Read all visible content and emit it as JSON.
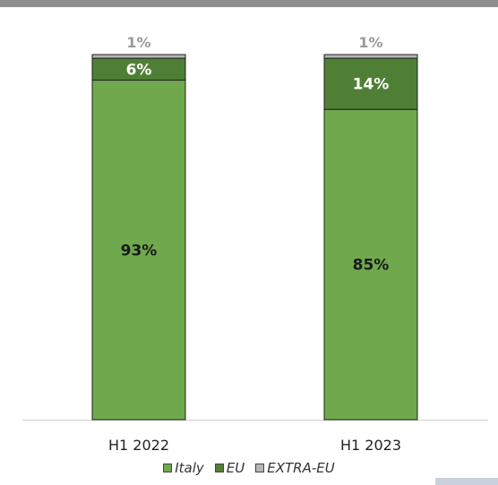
{
  "chart_data": {
    "type": "bar",
    "stacked": true,
    "categories": [
      "H1 2022",
      "H1 2023"
    ],
    "series": [
      {
        "name": "Italy",
        "values": [
          93,
          85
        ],
        "labels": [
          "93%",
          "85%"
        ],
        "color": "#70a84e",
        "label_color": "#1a1a1a"
      },
      {
        "name": "EU",
        "values": [
          6,
          14
        ],
        "labels": [
          "6%",
          "14%"
        ],
        "color": "#4f7f35",
        "label_color": "#ffffff"
      },
      {
        "name": "EXTRA-EU",
        "values": [
          1,
          1
        ],
        "labels": [
          "1%",
          "1%"
        ],
        "color": "#b6b6b6",
        "label_color": "#9a9a9a"
      }
    ],
    "ylim": [
      0,
      100
    ],
    "grid": false,
    "legend_position": "bottom",
    "title": "",
    "xlabel": "",
    "ylabel": ""
  }
}
